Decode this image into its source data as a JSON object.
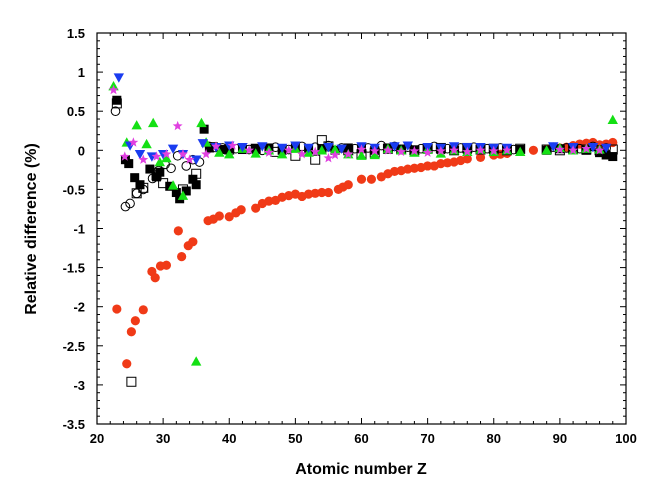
{
  "chart_data": {
    "type": "scatter",
    "title": "",
    "xlabel": "Atomic number Z",
    "ylabel": "Relative difference (%)",
    "xlim": [
      20,
      100
    ],
    "ylim": [
      -3.5,
      1.5
    ],
    "x_ticks": [
      "20",
      "30",
      "40",
      "50",
      "60",
      "70",
      "80",
      "90",
      "100"
    ],
    "y_ticks": [
      "1.5",
      "1",
      "0.5",
      "0",
      "-0.5",
      "-1",
      "-1.5",
      "-2",
      "-2.5",
      "-3",
      "-3.5"
    ],
    "grid": false,
    "legend": "none",
    "series": [
      {
        "marker": "circle-filled",
        "color": "#f03a17",
        "points": [
          [
            23,
            -2.03
          ],
          [
            24.5,
            -2.73
          ],
          [
            25.2,
            -2.32
          ],
          [
            25.8,
            -2.18
          ],
          [
            27,
            -2.04
          ],
          [
            28.3,
            -1.55
          ],
          [
            28.8,
            -1.63
          ],
          [
            29.6,
            -1.48
          ],
          [
            30.5,
            -1.47
          ],
          [
            32.3,
            -1.03
          ],
          [
            32.8,
            -1.36
          ],
          [
            33.8,
            -1.22
          ],
          [
            34.5,
            -1.17
          ],
          [
            36.8,
            -0.9
          ],
          [
            37.6,
            -0.88
          ],
          [
            38.5,
            -0.84
          ],
          [
            40,
            -0.85
          ],
          [
            41,
            -0.8
          ],
          [
            41.8,
            -0.76
          ],
          [
            44,
            -0.74
          ],
          [
            45,
            -0.68
          ],
          [
            46,
            -0.65
          ],
          [
            47,
            -0.64
          ],
          [
            48,
            -0.6
          ],
          [
            49,
            -0.58
          ],
          [
            50,
            -0.56
          ],
          [
            51,
            -0.59
          ],
          [
            52,
            -0.56
          ],
          [
            53,
            -0.55
          ],
          [
            54,
            -0.54
          ],
          [
            55,
            -0.54
          ],
          [
            56.5,
            -0.5
          ],
          [
            57.2,
            -0.47
          ],
          [
            58,
            -0.44
          ],
          [
            60,
            -0.37
          ],
          [
            61.5,
            -0.37
          ],
          [
            63,
            -0.34
          ],
          [
            64,
            -0.3
          ],
          [
            65,
            -0.27
          ],
          [
            66,
            -0.26
          ],
          [
            67,
            -0.24
          ],
          [
            68,
            -0.23
          ],
          [
            69,
            -0.22
          ],
          [
            70,
            -0.2
          ],
          [
            71,
            -0.2
          ],
          [
            72,
            -0.17
          ],
          [
            73,
            -0.16
          ],
          [
            74,
            -0.15
          ],
          [
            75,
            -0.13
          ],
          [
            76,
            -0.11
          ],
          [
            78,
            -0.09
          ],
          [
            80,
            -0.06
          ],
          [
            81,
            -0.05
          ],
          [
            82,
            -0.04
          ],
          [
            84,
            -0.01
          ],
          [
            86,
            0.0
          ],
          [
            88,
            0.01
          ],
          [
            90,
            0.03
          ],
          [
            91,
            0.04
          ],
          [
            92,
            0.06
          ],
          [
            93,
            0.08
          ],
          [
            94,
            0.09
          ],
          [
            95,
            0.1
          ],
          [
            96,
            0.07
          ],
          [
            97,
            0.08
          ],
          [
            98,
            0.1
          ]
        ]
      },
      {
        "marker": "square-filled",
        "color": "#000000",
        "points": [
          [
            23,
            0.64
          ],
          [
            24.3,
            -0.12
          ],
          [
            24.8,
            -0.17
          ],
          [
            25.7,
            -0.35
          ],
          [
            26.5,
            -0.44
          ],
          [
            28,
            -0.24
          ],
          [
            29,
            -0.34
          ],
          [
            29.5,
            -0.28
          ],
          [
            31,
            -0.46
          ],
          [
            32,
            -0.54
          ],
          [
            32.5,
            -0.62
          ],
          [
            33.5,
            -0.52
          ],
          [
            34.5,
            -0.37
          ],
          [
            35,
            -0.44
          ],
          [
            36.2,
            0.27
          ],
          [
            37,
            0.03
          ],
          [
            39,
            0.01
          ],
          [
            40,
            0.02
          ],
          [
            42,
            0.01
          ],
          [
            44,
            0.02
          ],
          [
            46,
            0.03
          ],
          [
            48,
            0.0
          ],
          [
            50,
            0.03
          ],
          [
            52,
            0.01
          ],
          [
            54,
            0.02
          ],
          [
            56,
            0.0
          ],
          [
            58,
            0.03
          ],
          [
            60,
            0.02
          ],
          [
            62,
            0.0
          ],
          [
            64,
            0.03
          ],
          [
            66,
            0.01
          ],
          [
            68,
            0.0
          ],
          [
            70,
            0.02
          ],
          [
            72,
            0.01
          ],
          [
            74,
            0.0
          ],
          [
            76,
            0.01
          ],
          [
            78,
            0.02
          ],
          [
            80,
            0.0
          ],
          [
            82,
            0.02
          ],
          [
            84,
            0.01
          ],
          [
            88,
            0.0
          ],
          [
            90,
            0.02
          ],
          [
            92,
            0.01
          ],
          [
            94,
            0.0
          ],
          [
            96,
            -0.03
          ],
          [
            97,
            -0.06
          ],
          [
            98,
            -0.08
          ]
        ]
      },
      {
        "marker": "square-open",
        "color": "#000000",
        "points": [
          [
            23,
            0.6
          ],
          [
            25.2,
            -2.96
          ],
          [
            26,
            -0.55
          ],
          [
            27,
            -0.48
          ],
          [
            29,
            -0.32
          ],
          [
            30,
            -0.42
          ],
          [
            33,
            -0.5
          ],
          [
            35,
            -0.3
          ],
          [
            37.5,
            0.04
          ],
          [
            40,
            0.01
          ],
          [
            44,
            0.02
          ],
          [
            47,
            -0.02
          ],
          [
            50,
            -0.07
          ],
          [
            53,
            -0.12
          ],
          [
            54,
            0.13
          ],
          [
            55,
            0.05
          ],
          [
            58,
            0.0
          ],
          [
            60,
            -0.05
          ],
          [
            62,
            -0.03
          ],
          [
            64,
            0.02
          ],
          [
            66,
            0.01
          ],
          [
            68,
            0.0
          ],
          [
            70,
            0.02
          ],
          [
            72,
            0.03
          ],
          [
            74,
            0.0
          ],
          [
            76,
            0.03
          ],
          [
            78,
            0.01
          ],
          [
            80,
            0.02
          ],
          [
            82,
            0.0
          ],
          [
            84,
            0.02
          ],
          [
            88,
            0.01
          ],
          [
            90,
            0.0
          ],
          [
            92,
            0.02
          ],
          [
            94,
            0.01
          ],
          [
            96,
            0.0
          ],
          [
            98,
            0.01
          ]
        ]
      },
      {
        "marker": "circle-open",
        "color": "#000000",
        "points": [
          [
            22.8,
            0.5
          ],
          [
            24.3,
            -0.72
          ],
          [
            25,
            -0.68
          ],
          [
            26,
            -0.55
          ],
          [
            27,
            -0.5
          ],
          [
            28.4,
            -0.36
          ],
          [
            29.3,
            -0.26
          ],
          [
            30.3,
            -0.18
          ],
          [
            31.2,
            -0.23
          ],
          [
            32.2,
            -0.07
          ],
          [
            33.5,
            -0.2
          ],
          [
            34.5,
            -0.12
          ],
          [
            35.5,
            -0.15
          ],
          [
            37,
            0.05
          ],
          [
            39,
            0.03
          ],
          [
            41,
            0.02
          ],
          [
            43,
            0.01
          ],
          [
            45,
            0.0
          ],
          [
            47,
            0.04
          ],
          [
            49,
            0.01
          ],
          [
            51,
            0.05
          ],
          [
            53,
            0.04
          ],
          [
            55,
            0.06
          ],
          [
            57,
            0.03
          ],
          [
            59,
            0.02
          ],
          [
            61,
            0.03
          ],
          [
            63,
            0.06
          ],
          [
            65,
            0.05
          ],
          [
            67,
            0.04
          ],
          [
            69,
            0.02
          ],
          [
            71,
            0.05
          ],
          [
            73,
            0.02
          ],
          [
            75,
            0.03
          ],
          [
            77,
            0.04
          ],
          [
            79,
            0.02
          ],
          [
            81,
            0.03
          ],
          [
            83,
            0.01
          ],
          [
            89,
            0.04
          ],
          [
            91,
            0.03
          ],
          [
            93,
            0.02
          ],
          [
            95,
            0.05
          ],
          [
            97,
            0.03
          ]
        ]
      },
      {
        "marker": "triangle-up",
        "color": "#14e014",
        "points": [
          [
            22.5,
            0.82
          ],
          [
            24.5,
            0.1
          ],
          [
            26,
            0.32
          ],
          [
            27.5,
            0.08
          ],
          [
            28.5,
            0.35
          ],
          [
            29.5,
            -0.15
          ],
          [
            30.5,
            -0.1
          ],
          [
            31.5,
            -0.45
          ],
          [
            33,
            -0.58
          ],
          [
            35,
            -2.7
          ],
          [
            35.8,
            0.35
          ],
          [
            36.5,
            0.1
          ],
          [
            38.5,
            -0.03
          ],
          [
            40,
            -0.05
          ],
          [
            42,
            0.02
          ],
          [
            44,
            -0.04
          ],
          [
            46,
            0.0
          ],
          [
            48,
            -0.05
          ],
          [
            50,
            0.02
          ],
          [
            52,
            -0.03
          ],
          [
            54,
            0.0
          ],
          [
            56,
            0.01
          ],
          [
            58,
            -0.05
          ],
          [
            60,
            -0.07
          ],
          [
            62,
            -0.06
          ],
          [
            64,
            0.02
          ],
          [
            66,
            0.0
          ],
          [
            68,
            -0.03
          ],
          [
            70,
            0.01
          ],
          [
            72,
            -0.04
          ],
          [
            74,
            0.0
          ],
          [
            76,
            -0.02
          ],
          [
            78,
            0.01
          ],
          [
            80,
            -0.02
          ],
          [
            82,
            0.0
          ],
          [
            84,
            -0.02
          ],
          [
            88,
            0.0
          ],
          [
            90,
            0.03
          ],
          [
            92,
            0.0
          ],
          [
            94,
            0.02
          ],
          [
            96,
            0.01
          ],
          [
            98,
            0.39
          ]
        ]
      },
      {
        "marker": "triangle-down",
        "color": "#1a3cf0",
        "points": [
          [
            23.3,
            0.93
          ],
          [
            25,
            0.06
          ],
          [
            26.5,
            -0.05
          ],
          [
            28.3,
            -0.08
          ],
          [
            30,
            -0.05
          ],
          [
            31.5,
            0.02
          ],
          [
            33,
            -0.05
          ],
          [
            35,
            -0.12
          ],
          [
            36,
            0.09
          ],
          [
            38,
            0.04
          ],
          [
            40,
            0.06
          ],
          [
            42,
            0.04
          ],
          [
            45,
            0.05
          ],
          [
            48,
            0.03
          ],
          [
            50,
            0.06
          ],
          [
            52,
            0.03
          ],
          [
            55,
            0.04
          ],
          [
            57,
            0.02
          ],
          [
            60,
            0.05
          ],
          [
            62,
            0.03
          ],
          [
            65,
            0.05
          ],
          [
            67,
            0.06
          ],
          [
            70,
            0.04
          ],
          [
            72,
            0.03
          ],
          [
            74,
            0.05
          ],
          [
            76,
            0.04
          ],
          [
            78,
            0.04
          ],
          [
            80,
            0.03
          ],
          [
            82,
            0.03
          ],
          [
            89,
            0.05
          ],
          [
            92,
            0.04
          ],
          [
            95,
            0.04
          ],
          [
            97,
            0.03
          ]
        ]
      },
      {
        "marker": "star",
        "color": "#e040e0",
        "points": [
          [
            22.5,
            0.77
          ],
          [
            24.2,
            -0.08
          ],
          [
            25.5,
            0.1
          ],
          [
            27,
            -0.12
          ],
          [
            29,
            -0.08
          ],
          [
            30.5,
            -0.05
          ],
          [
            32.2,
            0.31
          ],
          [
            33,
            -0.05
          ],
          [
            34,
            -0.12
          ],
          [
            36.5,
            -0.05
          ],
          [
            38,
            0.05
          ],
          [
            40.5,
            0.06
          ],
          [
            43,
            0.0
          ],
          [
            46,
            -0.03
          ],
          [
            49,
            0.0
          ],
          [
            51,
            -0.05
          ],
          [
            53,
            -0.02
          ],
          [
            55,
            -0.1
          ],
          [
            56,
            -0.06
          ],
          [
            58,
            -0.05
          ],
          [
            60,
            0.01
          ],
          [
            62,
            -0.01
          ],
          [
            64,
            0.0
          ],
          [
            66,
            -0.02
          ],
          [
            68,
            -0.01
          ],
          [
            70,
            -0.03
          ],
          [
            72,
            -0.01
          ],
          [
            74,
            0.0
          ],
          [
            76,
            -0.02
          ],
          [
            78,
            0.0
          ],
          [
            80,
            -0.01
          ],
          [
            82,
            0.0
          ],
          [
            90,
            0.01
          ],
          [
            92,
            0.0
          ],
          [
            94,
            0.02
          ],
          [
            96,
            0.0
          ]
        ]
      }
    ]
  }
}
